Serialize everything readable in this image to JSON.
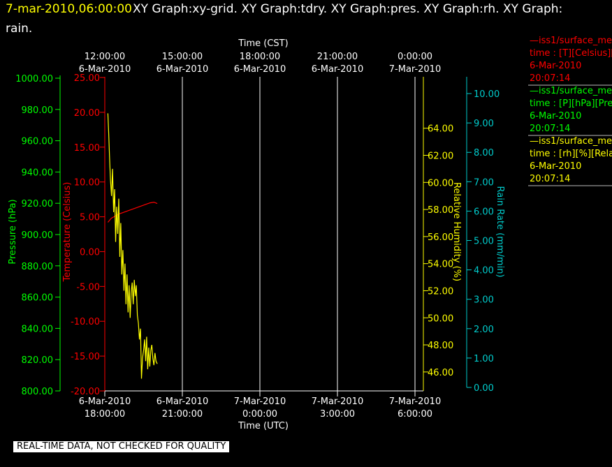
{
  "title": {
    "timestamp": "7-mar-2010,06:00:00",
    "graphs_line1": "XY Graph:xy-grid.  XY Graph:tdry.  XY Graph:pres.  XY Graph:rh.  XY Graph:",
    "graphs_line2": "rain."
  },
  "footer": "REAL-TIME DATA, NOT CHECKED FOR QUALITY",
  "colors": {
    "background": "#000000",
    "title_timestamp": "#ffff00",
    "title_text": "#ffffff",
    "temperature": "#ff0000",
    "pressure": "#00ff00",
    "humidity": "#ffff00",
    "rain": "#00cccc",
    "grid": "#ffffff"
  },
  "legend": [
    {
      "name": "temperature",
      "color": "#ff0000",
      "lines": [
        "—iss1/surface_me",
        "time : [T][Celsius][T",
        "6-Mar-2010",
        "20:07:14"
      ]
    },
    {
      "name": "pressure",
      "color": "#00ff00",
      "lines": [
        "—iss1/surface_me",
        "time : [P][hPa][Pres",
        "6-Mar-2010",
        "20:07:14"
      ]
    },
    {
      "name": "humidity",
      "color": "#ffff00",
      "lines": [
        "—iss1/surface_me",
        "time : [rh][%][Relati",
        "6-Mar-2010",
        "20:07:14"
      ]
    }
  ],
  "chart_data": {
    "type": "line",
    "x_bottom": {
      "label": "Time (UTC)",
      "ticks": [
        {
          "hours": 0,
          "line1": "6-Mar-2010",
          "line2": "18:00:00"
        },
        {
          "hours": 3,
          "line1": "6-Mar-2010",
          "line2": "21:00:00"
        },
        {
          "hours": 6,
          "line1": "7-Mar-2010",
          "line2": "0:00:00"
        },
        {
          "hours": 9,
          "line1": "7-Mar-2010",
          "line2": "3:00:00"
        },
        {
          "hours": 12,
          "line1": "7-Mar-2010",
          "line2": "6:00:00"
        }
      ],
      "range_hours": [
        0,
        12
      ]
    },
    "x_top": {
      "label": "Time (CST)",
      "ticks": [
        {
          "hours": 0,
          "line1": "12:00:00",
          "line2": "6-Mar-2010"
        },
        {
          "hours": 3,
          "line1": "15:00:00",
          "line2": "6-Mar-2010"
        },
        {
          "hours": 6,
          "line1": "18:00:00",
          "line2": "6-Mar-2010"
        },
        {
          "hours": 9,
          "line1": "21:00:00",
          "line2": "6-Mar-2010"
        },
        {
          "hours": 12,
          "line1": "0:00:00",
          "line2": "7-Mar-2010"
        }
      ]
    },
    "grid": "vertical",
    "axes": {
      "pressure": {
        "label": "Pressure (hPa)",
        "color": "#00ff00",
        "range": [
          800,
          1000
        ],
        "ticks": [
          "800.00",
          "820.00",
          "840.00",
          "860.00",
          "880.00",
          "900.00",
          "920.00",
          "940.00",
          "960.00",
          "980.00",
          "1000.00"
        ]
      },
      "temperature": {
        "label": "Temperature (Celsius)",
        "color": "#ff0000",
        "range": [
          -20,
          25
        ],
        "ticks": [
          "-20.00",
          "-15.00",
          "-10.00",
          "-5.00",
          "0.00",
          "5.00",
          "10.00",
          "15.00",
          "20.00",
          "25.00"
        ]
      },
      "humidity": {
        "label": "Relative Humidity (%)",
        "color": "#ffff00",
        "range": [
          44.6,
          67.8
        ],
        "ticks": [
          "46.00",
          "48.00",
          "50.00",
          "52.00",
          "54.00",
          "56.00",
          "58.00",
          "60.00",
          "62.00",
          "64.00"
        ]
      },
      "rain": {
        "label": "Rain Rate (mm/min)",
        "color": "#00cccc",
        "range": [
          0,
          10.5
        ],
        "ticks": [
          "0.00",
          "1.00",
          "2.00",
          "3.00",
          "4.00",
          "5.00",
          "6.00",
          "7.00",
          "8.00",
          "9.00",
          "10.00"
        ]
      }
    },
    "series": [
      {
        "name": "temperature",
        "color": "#ff0000",
        "x_hours": [
          0.12,
          0.25,
          0.4,
          0.55,
          0.7,
          0.85,
          1.0,
          1.15,
          1.3,
          1.45,
          1.6,
          1.75,
          1.9,
          2.03
        ],
        "values": [
          4.2,
          4.8,
          5.1,
          5.4,
          5.6,
          5.8,
          6.0,
          6.2,
          6.4,
          6.6,
          6.8,
          7.0,
          7.1,
          6.9
        ]
      },
      {
        "name": "humidity",
        "color": "#ffff00",
        "x_hours": [
          0.12,
          0.15,
          0.18,
          0.22,
          0.26,
          0.3,
          0.34,
          0.38,
          0.42,
          0.46,
          0.5,
          0.54,
          0.58,
          0.62,
          0.66,
          0.7,
          0.74,
          0.78,
          0.82,
          0.86,
          0.9,
          0.94,
          0.98,
          1.02,
          1.06,
          1.1,
          1.14,
          1.18,
          1.22,
          1.26,
          1.3,
          1.34,
          1.38,
          1.42,
          1.46,
          1.5,
          1.54,
          1.58,
          1.62,
          1.66,
          1.7,
          1.74,
          1.78,
          1.82,
          1.86,
          1.9,
          1.94,
          1.98,
          2.03
        ],
        "values": [
          65.1,
          63.6,
          62.0,
          60.2,
          59.0,
          61.0,
          57.8,
          59.5,
          55.6,
          58.2,
          56.2,
          58.8,
          54.5,
          57.0,
          53.2,
          55.0,
          52.0,
          54.0,
          51.0,
          53.2,
          50.4,
          52.4,
          50.0,
          51.8,
          52.6,
          51.0,
          52.8,
          51.6,
          52.4,
          50.2,
          49.6,
          48.4,
          49.2,
          45.5,
          47.0,
          47.6,
          48.4,
          46.8,
          48.6,
          46.2,
          47.8,
          46.4,
          47.6,
          48.0,
          47.0,
          46.5,
          47.4,
          46.8,
          46.6
        ]
      }
    ]
  }
}
